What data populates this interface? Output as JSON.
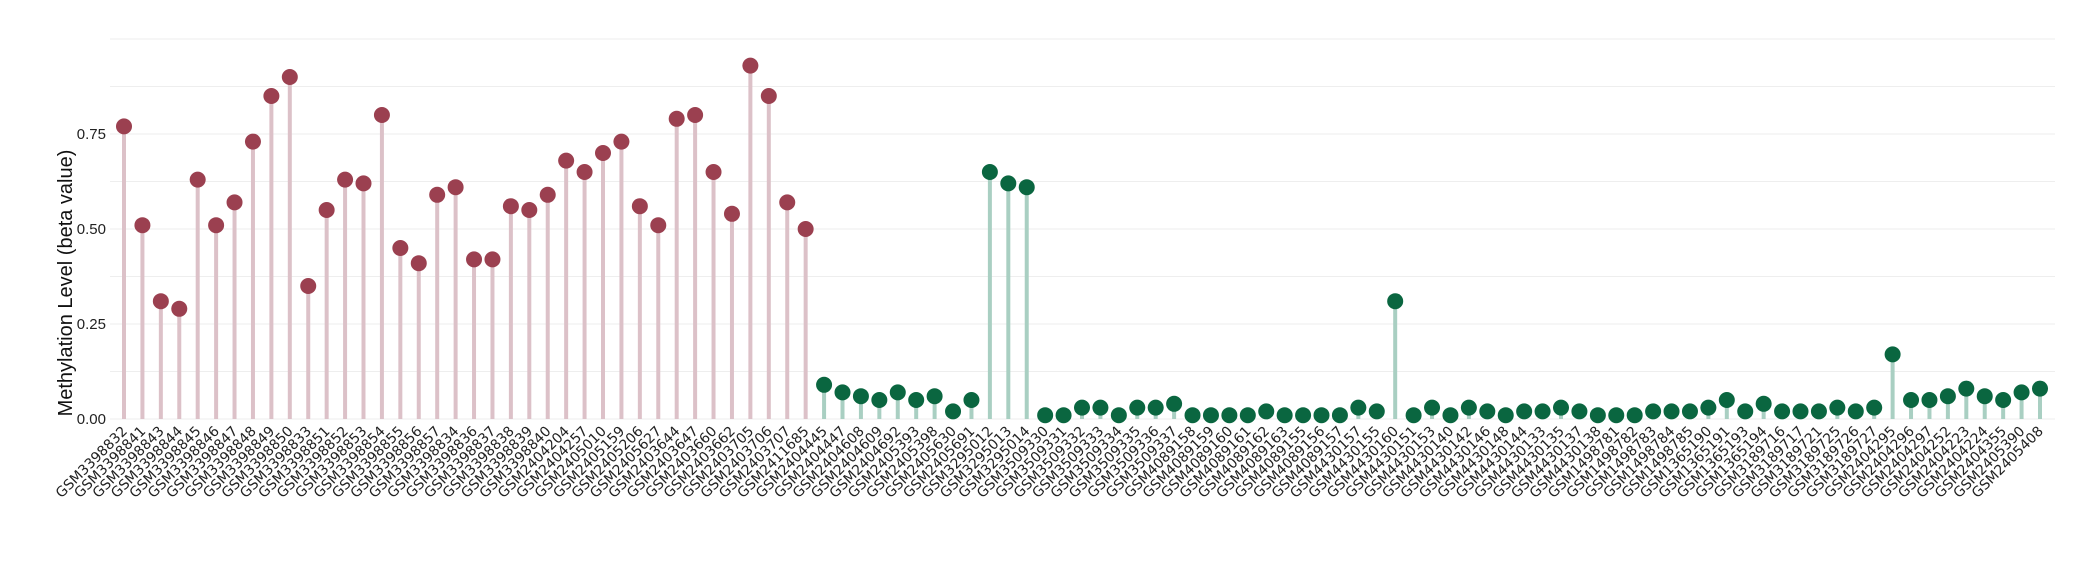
{
  "chart_data": {
    "type": "lollipop",
    "ylabel": "Methylation Level (beta value)",
    "ylim": [
      0,
      1.0
    ],
    "yticks": [
      "0.00",
      "0.25",
      "0.50",
      "0.75"
    ],
    "grid": true,
    "series": [
      {
        "color": "#9b4050",
        "stem_color": "#dcc1c8",
        "points": [
          {
            "x": "GSM3398832",
            "y": 0.77
          },
          {
            "x": "GSM3398841",
            "y": 0.51
          },
          {
            "x": "GSM3398843",
            "y": 0.31
          },
          {
            "x": "GSM3398844",
            "y": 0.29
          },
          {
            "x": "GSM3398845",
            "y": 0.63
          },
          {
            "x": "GSM3398846",
            "y": 0.51
          },
          {
            "x": "GSM3398847",
            "y": 0.57
          },
          {
            "x": "GSM3398848",
            "y": 0.73
          },
          {
            "x": "GSM3398849",
            "y": 0.85
          },
          {
            "x": "GSM3398850",
            "y": 0.9
          },
          {
            "x": "GSM3398833",
            "y": 0.35
          },
          {
            "x": "GSM3398851",
            "y": 0.55
          },
          {
            "x": "GSM3398852",
            "y": 0.63
          },
          {
            "x": "GSM3398853",
            "y": 0.62
          },
          {
            "x": "GSM3398854",
            "y": 0.8
          },
          {
            "x": "GSM3398855",
            "y": 0.45
          },
          {
            "x": "GSM3398856",
            "y": 0.41
          },
          {
            "x": "GSM3398857",
            "y": 0.59
          },
          {
            "x": "GSM3398834",
            "y": 0.61
          },
          {
            "x": "GSM3398836",
            "y": 0.42
          },
          {
            "x": "GSM3398837",
            "y": 0.42
          },
          {
            "x": "GSM3398838",
            "y": 0.56
          },
          {
            "x": "GSM3398839",
            "y": 0.55
          },
          {
            "x": "GSM3398840",
            "y": 0.59
          },
          {
            "x": "GSM2404204",
            "y": 0.68
          },
          {
            "x": "GSM2404257",
            "y": 0.65
          },
          {
            "x": "GSM2405010",
            "y": 0.7
          },
          {
            "x": "GSM2405159",
            "y": 0.73
          },
          {
            "x": "GSM2405206",
            "y": 0.56
          },
          {
            "x": "GSM2405627",
            "y": 0.51
          },
          {
            "x": "GSM2403644",
            "y": 0.79
          },
          {
            "x": "GSM2403647",
            "y": 0.8
          },
          {
            "x": "GSM2403660",
            "y": 0.65
          },
          {
            "x": "GSM2403662",
            "y": 0.54
          },
          {
            "x": "GSM2403705",
            "y": 0.93
          },
          {
            "x": "GSM2403706",
            "y": 0.85
          },
          {
            "x": "GSM2403707",
            "y": 0.57
          },
          {
            "x": "GSM2411685",
            "y": 0.5
          }
        ]
      },
      {
        "color": "#0a6640",
        "stem_color": "#a9cfc2",
        "points": [
          {
            "x": "GSM2404445",
            "y": 0.09
          },
          {
            "x": "GSM2404447",
            "y": 0.07
          },
          {
            "x": "GSM2404608",
            "y": 0.06
          },
          {
            "x": "GSM2404609",
            "y": 0.05
          },
          {
            "x": "GSM2404692",
            "y": 0.07
          },
          {
            "x": "GSM2405393",
            "y": 0.05
          },
          {
            "x": "GSM2405398",
            "y": 0.06
          },
          {
            "x": "GSM2405630",
            "y": 0.02
          },
          {
            "x": "GSM2405691",
            "y": 0.05
          },
          {
            "x": "GSM3295012",
            "y": 0.65
          },
          {
            "x": "GSM3295013",
            "y": 0.62
          },
          {
            "x": "GSM3295014",
            "y": 0.61
          },
          {
            "x": "GSM3509330",
            "y": 0.01
          },
          {
            "x": "GSM3509331",
            "y": 0.01
          },
          {
            "x": "GSM3509332",
            "y": 0.03
          },
          {
            "x": "GSM3509333",
            "y": 0.03
          },
          {
            "x": "GSM3509334",
            "y": 0.01
          },
          {
            "x": "GSM3509335",
            "y": 0.03
          },
          {
            "x": "GSM3509336",
            "y": 0.03
          },
          {
            "x": "GSM3509337",
            "y": 0.04
          },
          {
            "x": "GSM4089158",
            "y": 0.01
          },
          {
            "x": "GSM4089159",
            "y": 0.01
          },
          {
            "x": "GSM4089160",
            "y": 0.01
          },
          {
            "x": "GSM4089161",
            "y": 0.01
          },
          {
            "x": "GSM4089162",
            "y": 0.02
          },
          {
            "x": "GSM4089163",
            "y": 0.01
          },
          {
            "x": "GSM4089155",
            "y": 0.01
          },
          {
            "x": "GSM4089156",
            "y": 0.01
          },
          {
            "x": "GSM4089157",
            "y": 0.01
          },
          {
            "x": "GSM4430157",
            "y": 0.03
          },
          {
            "x": "GSM4430155",
            "y": 0.02
          },
          {
            "x": "GSM4430160",
            "y": 0.31
          },
          {
            "x": "GSM4430151",
            "y": 0.01
          },
          {
            "x": "GSM4430153",
            "y": 0.03
          },
          {
            "x": "GSM4430140",
            "y": 0.01
          },
          {
            "x": "GSM4430142",
            "y": 0.03
          },
          {
            "x": "GSM4430146",
            "y": 0.02
          },
          {
            "x": "GSM4430148",
            "y": 0.01
          },
          {
            "x": "GSM4430144",
            "y": 0.02
          },
          {
            "x": "GSM4430133",
            "y": 0.02
          },
          {
            "x": "GSM4430135",
            "y": 0.03
          },
          {
            "x": "GSM4430137",
            "y": 0.02
          },
          {
            "x": "GSM4430138",
            "y": 0.01
          },
          {
            "x": "GSM1498781",
            "y": 0.01
          },
          {
            "x": "GSM1498782",
            "y": 0.01
          },
          {
            "x": "GSM1498783",
            "y": 0.02
          },
          {
            "x": "GSM1498784",
            "y": 0.02
          },
          {
            "x": "GSM1498785",
            "y": 0.02
          },
          {
            "x": "GSM1365190",
            "y": 0.03
          },
          {
            "x": "GSM1365191",
            "y": 0.05
          },
          {
            "x": "GSM1365193",
            "y": 0.02
          },
          {
            "x": "GSM1365194",
            "y": 0.04
          },
          {
            "x": "GSM3189716",
            "y": 0.02
          },
          {
            "x": "GSM3189717",
            "y": 0.02
          },
          {
            "x": "GSM3189721",
            "y": 0.02
          },
          {
            "x": "GSM3189725",
            "y": 0.03
          },
          {
            "x": "GSM3189726",
            "y": 0.02
          },
          {
            "x": "GSM3189727",
            "y": 0.03
          },
          {
            "x": "GSM2404295",
            "y": 0.17
          },
          {
            "x": "GSM2404296",
            "y": 0.05
          },
          {
            "x": "GSM2404297",
            "y": 0.05
          },
          {
            "x": "GSM2404252",
            "y": 0.06
          },
          {
            "x": "GSM2404223",
            "y": 0.08
          },
          {
            "x": "GSM2404224",
            "y": 0.06
          },
          {
            "x": "GSM2404355",
            "y": 0.05
          },
          {
            "x": "GSM2405390",
            "y": 0.07
          },
          {
            "x": "GSM2405408",
            "y": 0.08
          }
        ]
      }
    ]
  }
}
